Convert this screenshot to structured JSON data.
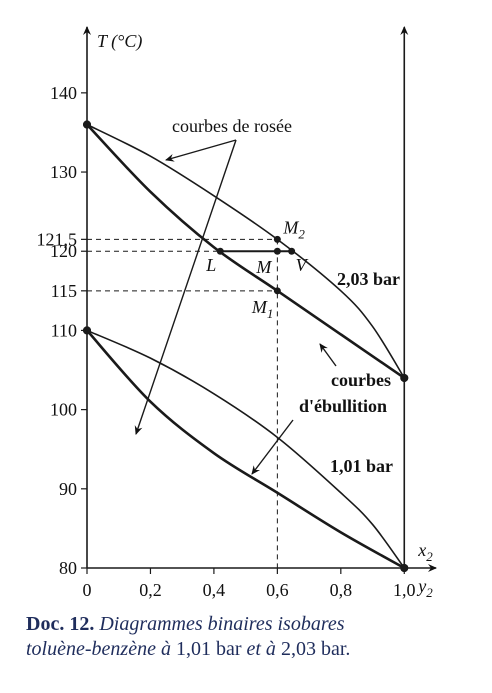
{
  "chart_data": {
    "type": "line",
    "y_label": "T (°C)",
    "x_label": {
      "main": "x",
      "sub": "2"
    },
    "x2_label": {
      "main": "y",
      "sub": "2"
    },
    "xlim": [
      0,
      1.1
    ],
    "ylim": [
      80,
      146.8
    ],
    "xticks": [
      0,
      {
        "value": 0.2,
        "label": "0,2"
      },
      {
        "value": 0.4,
        "label": "0,4"
      },
      {
        "value": 0.6,
        "label": "0,6"
      },
      {
        "value": 0.8,
        "label": "0,8"
      },
      {
        "value": 1.0,
        "label": "1,0"
      }
    ],
    "yticks": [
      80,
      90,
      100,
      110,
      115,
      120,
      {
        "value": 121.5,
        "label": "121,5"
      },
      130,
      140
    ],
    "color": "#1a1a1a",
    "series": [
      {
        "name": "2,03 bar",
        "x": [
          0,
          0.2,
          0.4,
          0.6,
          0.8,
          0.9,
          1.0
        ],
        "values": [
          136,
          132,
          127,
          121.5,
          115,
          110.5,
          104
        ]
      },
      {
        "x": [
          0,
          0.2,
          0.4,
          0.6,
          0.8,
          1.0
        ],
        "values": [
          136,
          127.5,
          120.5,
          115,
          109.5,
          104
        ]
      },
      {
        "name": "1,01 bar",
        "x": [
          0,
          0.2,
          0.4,
          0.6,
          0.8,
          0.9,
          1.0
        ],
        "values": [
          110,
          106.5,
          102,
          96.5,
          89.5,
          85.5,
          80
        ]
      },
      {
        "x": [
          0,
          0.2,
          0.4,
          0.6,
          0.8,
          1.0
        ],
        "values": [
          110,
          101,
          94.5,
          89.5,
          84.5,
          80
        ]
      }
    ],
    "points": [
      {
        "label": "M",
        "sub": "2",
        "x": 0.6,
        "y": 121.5
      },
      {
        "label": "M",
        "x": 0.6,
        "y": 120
      },
      {
        "label": "M",
        "sub": "1",
        "x": 0.6,
        "y": 115
      },
      {
        "label": "L",
        "x": 0.42,
        "y": 120
      },
      {
        "label": "V",
        "x": 0.645,
        "y": 120
      }
    ],
    "annotations": [
      "courbes de rosée",
      "courbes",
      "d'ébullition"
    ]
  },
  "caption": [
    [
      {
        "text": "Doc. 12.",
        "style": "bold"
      },
      {
        "text": " Diagrammes binaires isobares",
        "style": "italic"
      }
    ],
    [
      {
        "text": "toluène-benzène à ",
        "style": "italic"
      },
      {
        "text": "1,01 bar ",
        "style": "roman"
      },
      {
        "text": "et à ",
        "style": "italic"
      },
      {
        "text": "2,03 bar.",
        "style": "roman"
      }
    ]
  ]
}
